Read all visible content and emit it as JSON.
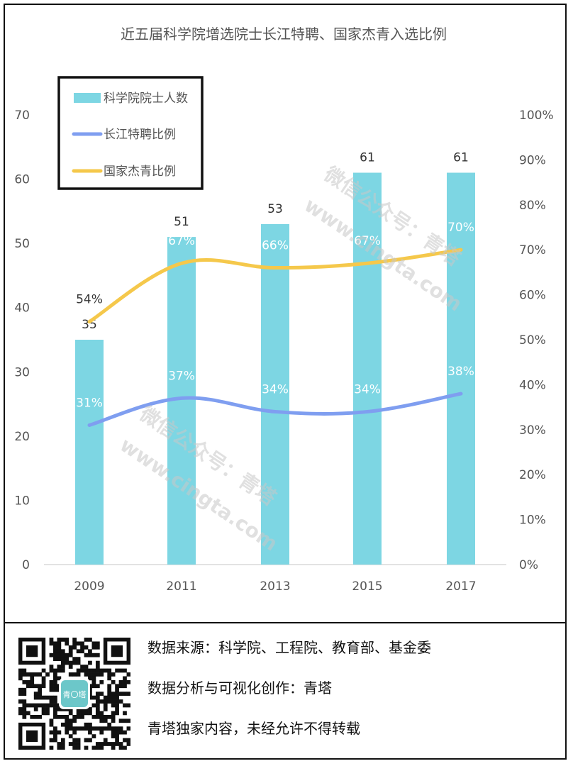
{
  "chart_data": {
    "type": "bar+line",
    "title": "近五届科学院增选院士长江特聘、国家杰青入选比例",
    "categories": [
      "2009",
      "2011",
      "2013",
      "2015",
      "2017"
    ],
    "left_axis": {
      "min": 0,
      "max": 70,
      "ticks": [
        "0",
        "10",
        "20",
        "30",
        "40",
        "50",
        "60",
        "70"
      ]
    },
    "right_axis": {
      "min": 0,
      "max": 100,
      "ticks": [
        "0%",
        "10%",
        "20%",
        "30%",
        "40%",
        "50%",
        "60%",
        "70%",
        "80%",
        "90%",
        "100%"
      ]
    },
    "legend_position": "top-left",
    "series": [
      {
        "name": "科学院院士人数",
        "kind": "bar",
        "axis": "left",
        "color": "#7dd6e3",
        "values": [
          35,
          51,
          53,
          61,
          61
        ],
        "labels": [
          "35",
          "51",
          "53",
          "61",
          "61"
        ]
      },
      {
        "name": "长江特聘比例",
        "kind": "line",
        "axis": "right",
        "color": "#7f9ef0",
        "values": [
          31,
          37,
          34,
          34,
          38
        ],
        "labels": [
          "31%",
          "37%",
          "34%",
          "34%",
          "38%"
        ]
      },
      {
        "name": "国家杰青比例",
        "kind": "line",
        "axis": "right",
        "color": "#f5c84b",
        "values": [
          54,
          67,
          66,
          67,
          70
        ],
        "labels": [
          "54%",
          "67%",
          "66%",
          "67%",
          "70%"
        ]
      }
    ],
    "watermark": [
      "微信公众号：青塔",
      "www.cingta.com"
    ]
  },
  "footer": {
    "source": "数据来源：科学院、工程院、教育部、基金委",
    "analysis": "数据分析与可视化创作：青塔",
    "copyright": "青塔独家内容，未经允许不得转载",
    "qr_center": "青〇塔"
  }
}
